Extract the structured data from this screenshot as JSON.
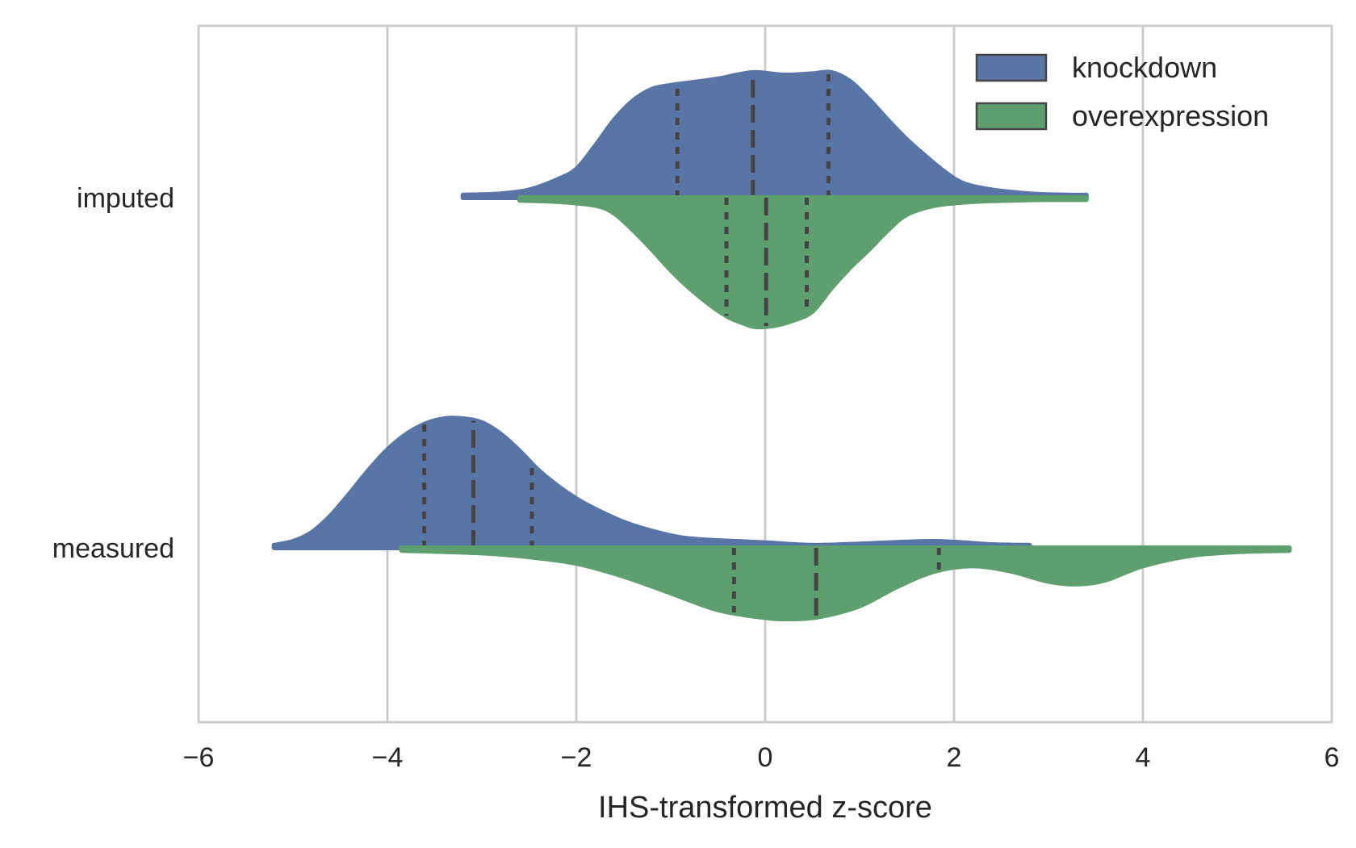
{
  "chart_data": {
    "type": "violin",
    "orientation": "horizontal",
    "split": true,
    "title": "",
    "xlabel": "IHS-transformed z-score",
    "ylabel": "",
    "xlim": [
      -6,
      6
    ],
    "x_ticks": [
      -6,
      -4,
      -2,
      0,
      2,
      4,
      6
    ],
    "x_tick_labels": [
      "−6",
      "−4",
      "−2",
      "0",
      "2",
      "4",
      "6"
    ],
    "grid": "vertical",
    "categories": [
      "imputed",
      "measured"
    ],
    "legend": {
      "position": "top-right",
      "entries": [
        "knockdown",
        "overexpression"
      ]
    },
    "series": [
      {
        "name": "knockdown",
        "color": "#5975a5",
        "side": "upper",
        "groups": [
          {
            "category": "imputed",
            "range": [
              -3.2,
              3.4
            ],
            "quartiles": [
              -0.93,
              -0.13,
              0.67
            ],
            "density": [
              [
                -3.2,
                0.02
              ],
              [
                -2.8,
                0.03
              ],
              [
                -2.5,
                0.06
              ],
              [
                -2.2,
                0.14
              ],
              [
                -2.0,
                0.22
              ],
              [
                -1.8,
                0.4
              ],
              [
                -1.6,
                0.6
              ],
              [
                -1.4,
                0.75
              ],
              [
                -1.2,
                0.84
              ],
              [
                -1.0,
                0.87
              ],
              [
                -0.8,
                0.89
              ],
              [
                -0.5,
                0.92
              ],
              [
                -0.3,
                0.95
              ],
              [
                -0.1,
                0.97
              ],
              [
                0.2,
                0.95
              ],
              [
                0.5,
                0.96
              ],
              [
                0.7,
                0.97
              ],
              [
                0.9,
                0.9
              ],
              [
                1.1,
                0.76
              ],
              [
                1.3,
                0.6
              ],
              [
                1.5,
                0.45
              ],
              [
                1.7,
                0.32
              ],
              [
                1.9,
                0.2
              ],
              [
                2.1,
                0.11
              ],
              [
                2.4,
                0.06
              ],
              [
                2.8,
                0.03
              ],
              [
                3.2,
                0.02
              ],
              [
                3.4,
                0.02
              ]
            ]
          },
          {
            "category": "measured",
            "range": [
              -5.2,
              2.8
            ],
            "quartiles": [
              -3.61,
              -3.09,
              -2.47
            ],
            "density": [
              [
                -5.2,
                0.02
              ],
              [
                -5.0,
                0.05
              ],
              [
                -4.8,
                0.12
              ],
              [
                -4.6,
                0.25
              ],
              [
                -4.4,
                0.42
              ],
              [
                -4.2,
                0.6
              ],
              [
                -4.0,
                0.76
              ],
              [
                -3.8,
                0.88
              ],
              [
                -3.6,
                0.96
              ],
              [
                -3.4,
                1.0
              ],
              [
                -3.2,
                1.0
              ],
              [
                -3.0,
                0.97
              ],
              [
                -2.8,
                0.88
              ],
              [
                -2.6,
                0.75
              ],
              [
                -2.4,
                0.6
              ],
              [
                -2.2,
                0.48
              ],
              [
                -2.0,
                0.38
              ],
              [
                -1.8,
                0.3
              ],
              [
                -1.5,
                0.2
              ],
              [
                -1.2,
                0.13
              ],
              [
                -0.9,
                0.08
              ],
              [
                -0.6,
                0.06
              ],
              [
                -0.3,
                0.05
              ],
              [
                0.0,
                0.04
              ],
              [
                0.5,
                0.02
              ],
              [
                1.0,
                0.03
              ],
              [
                1.5,
                0.045
              ],
              [
                1.8,
                0.05
              ],
              [
                2.1,
                0.04
              ],
              [
                2.4,
                0.025
              ],
              [
                2.8,
                0.02
              ]
            ]
          }
        ]
      },
      {
        "name": "overexpression",
        "color": "#5f9e6e",
        "side": "lower",
        "groups": [
          {
            "category": "imputed",
            "range": [
              -2.6,
              3.4
            ],
            "quartiles": [
              -0.41,
              0.01,
              0.44
            ],
            "density": [
              [
                -2.6,
                0.02
              ],
              [
                -2.2,
                0.03
              ],
              [
                -1.8,
                0.06
              ],
              [
                -1.6,
                0.12
              ],
              [
                -1.4,
                0.25
              ],
              [
                -1.2,
                0.4
              ],
              [
                -1.0,
                0.56
              ],
              [
                -0.8,
                0.7
              ],
              [
                -0.6,
                0.82
              ],
              [
                -0.4,
                0.92
              ],
              [
                -0.2,
                0.98
              ],
              [
                -0.1,
                1.0
              ],
              [
                0.1,
                0.99
              ],
              [
                0.3,
                0.95
              ],
              [
                0.5,
                0.88
              ],
              [
                0.7,
                0.7
              ],
              [
                0.9,
                0.54
              ],
              [
                1.1,
                0.4
              ],
              [
                1.3,
                0.25
              ],
              [
                1.5,
                0.13
              ],
              [
                1.8,
                0.06
              ],
              [
                2.2,
                0.03
              ],
              [
                2.6,
                0.02
              ],
              [
                3.0,
                0.015
              ],
              [
                3.4,
                0.015
              ]
            ]
          },
          {
            "category": "measured",
            "range": [
              -3.85,
              5.55
            ],
            "quartiles": [
              -0.33,
              0.54,
              1.84
            ],
            "density": [
              [
                -3.85,
                0.02
              ],
              [
                -3.0,
                0.04
              ],
              [
                -2.5,
                0.07
              ],
              [
                -2.0,
                0.12
              ],
              [
                -1.5,
                0.22
              ],
              [
                -1.0,
                0.35
              ],
              [
                -0.5,
                0.48
              ],
              [
                0.0,
                0.54
              ],
              [
                0.3,
                0.55
              ],
              [
                0.6,
                0.53
              ],
              [
                1.0,
                0.45
              ],
              [
                1.4,
                0.3
              ],
              [
                1.8,
                0.18
              ],
              [
                2.2,
                0.14
              ],
              [
                2.6,
                0.18
              ],
              [
                3.0,
                0.26
              ],
              [
                3.3,
                0.28
              ],
              [
                3.6,
                0.25
              ],
              [
                4.0,
                0.14
              ],
              [
                4.5,
                0.06
              ],
              [
                5.0,
                0.03
              ],
              [
                5.55,
                0.02
              ]
            ]
          }
        ]
      }
    ]
  }
}
